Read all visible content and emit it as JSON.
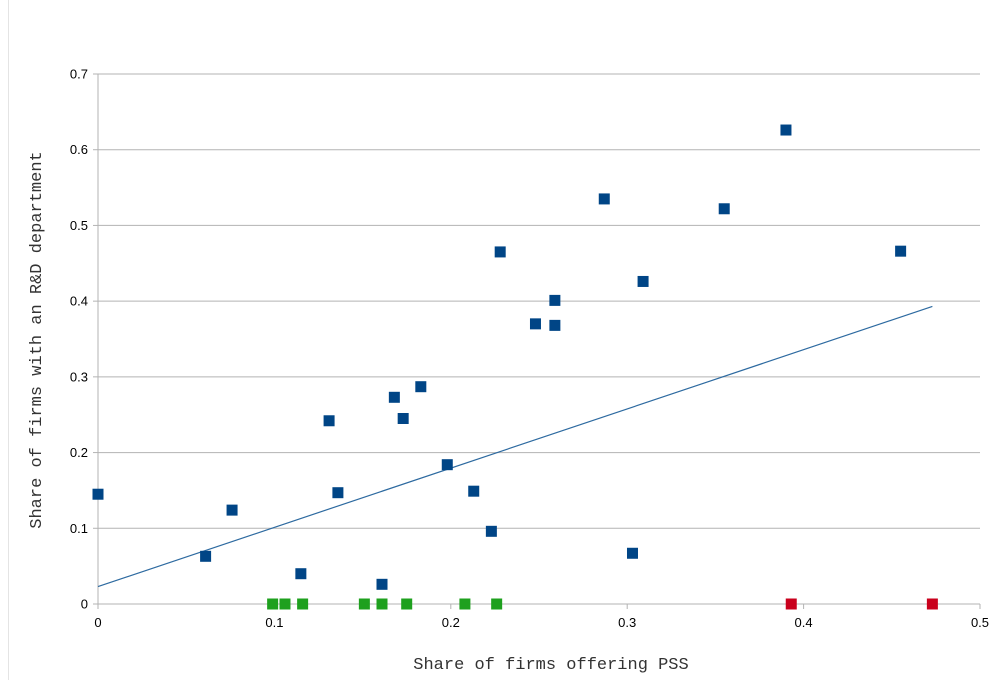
{
  "chart_data": {
    "type": "scatter",
    "title": "",
    "xlabel": "Share of firms offering PSS",
    "ylabel": "Share of firms with an R&D department",
    "xlim": [
      0,
      0.5
    ],
    "ylim": [
      0,
      0.7
    ],
    "x_ticks": [
      "0",
      "0.1",
      "0.2",
      "0.3",
      "0.4",
      "0.5"
    ],
    "y_ticks": [
      "0",
      "0.1",
      "0.2",
      "0.3",
      "0.4",
      "0.5",
      "0.6",
      "0.7"
    ],
    "grid": "horizontal",
    "legend": "none",
    "series": [
      {
        "color": "#004586",
        "points": [
          [
            0.0,
            0.145
          ],
          [
            0.061,
            0.063
          ],
          [
            0.076,
            0.124
          ],
          [
            0.115,
            0.04
          ],
          [
            0.131,
            0.242
          ],
          [
            0.136,
            0.147
          ],
          [
            0.161,
            0.026
          ],
          [
            0.168,
            0.273
          ],
          [
            0.173,
            0.245
          ],
          [
            0.183,
            0.287
          ],
          [
            0.198,
            0.184
          ],
          [
            0.213,
            0.149
          ],
          [
            0.223,
            0.096
          ],
          [
            0.228,
            0.465
          ],
          [
            0.248,
            0.37
          ],
          [
            0.259,
            0.401
          ],
          [
            0.259,
            0.368
          ],
          [
            0.287,
            0.535
          ],
          [
            0.303,
            0.067
          ],
          [
            0.309,
            0.426
          ],
          [
            0.355,
            0.522
          ],
          [
            0.39,
            0.626
          ],
          [
            0.455,
            0.466
          ]
        ]
      },
      {
        "color": "#1ea01e",
        "points": [
          [
            0.099,
            0.0
          ],
          [
            0.106,
            0.0
          ],
          [
            0.116,
            0.0
          ],
          [
            0.151,
            0.0
          ],
          [
            0.161,
            0.0
          ],
          [
            0.175,
            0.0
          ],
          [
            0.208,
            0.0
          ],
          [
            0.226,
            0.0
          ]
        ]
      },
      {
        "color": "#c9001c",
        "points": [
          [
            0.393,
            0.0
          ],
          [
            0.473,
            0.0
          ]
        ]
      }
    ],
    "trendline": {
      "color": "#2d6aa0",
      "from": [
        0.0,
        0.023
      ],
      "to": [
        0.473,
        0.393
      ]
    }
  }
}
